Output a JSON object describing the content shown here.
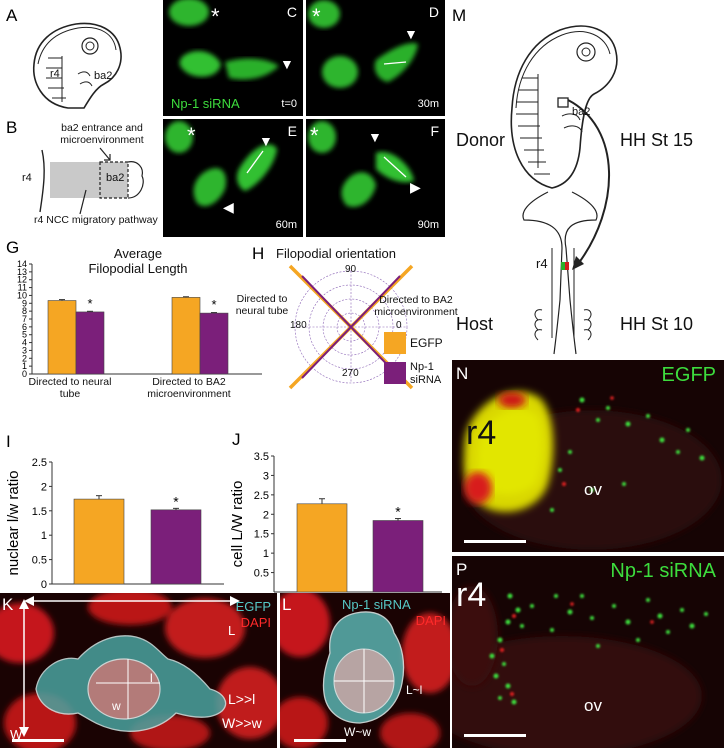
{
  "panels": {
    "A": {
      "label": "A",
      "r4": "r4",
      "ba2": "ba2"
    },
    "B": {
      "label": "B",
      "entrance": "ba2 entrance and microenvironment",
      "r4": "r4",
      "ba2": "ba2",
      "pathway": "r4 NCC migratory pathway"
    },
    "C": {
      "label": "C",
      "star": "*",
      "treatment": "Np-1 siRNA",
      "time": "t=0"
    },
    "D": {
      "label": "D",
      "star": "*",
      "time": "30m"
    },
    "E": {
      "label": "E",
      "star": "*",
      "time": "60m"
    },
    "F": {
      "label": "F",
      "star": "*",
      "time": "90m"
    },
    "G": {
      "label": "G",
      "title_line1": "Average",
      "title_line2": "Filopodial Length"
    },
    "H": {
      "label": "H",
      "title": "Filopodial orientation",
      "left_text_line1": "Directed to",
      "left_text_line2": "neural tube",
      "right_text_line1": "Directed to BA2",
      "right_text_line2": "microenvironment",
      "deg90": "90",
      "deg180": "180",
      "deg0": "0",
      "deg270": "270",
      "legend_egfp": "EGFP",
      "legend_np1_line1": "Np-1",
      "legend_np1_line2": "siRNA"
    },
    "I": {
      "label": "I"
    },
    "J": {
      "label": "J"
    },
    "K": {
      "label": "K",
      "egfp": "EGFP",
      "dapi": "DAPI",
      "L": "L",
      "W": "W",
      "l": "l",
      "w": "w",
      "rel1": "L>>l",
      "rel2": "W>>w"
    },
    "L": {
      "label": "L",
      "np1": "Np-1 siRNA",
      "dapi": "DAPI",
      "rel": "L~l",
      "relw": "W~w"
    },
    "M": {
      "label": "M",
      "donor": "Donor",
      "stage_donor": "HH St 15",
      "ba2": "ba2",
      "r4": "r4",
      "host": "Host",
      "stage_host": "HH St 10"
    },
    "N": {
      "label": "N",
      "treatment": "EGFP",
      "r4": "r4",
      "ov": "ov"
    },
    "P": {
      "label": "P",
      "treatment": "Np-1 siRNA",
      "r4": "r4",
      "ov": "ov"
    }
  },
  "colors": {
    "egfp": "#f5a623",
    "np1": "#7b1f7a"
  },
  "chart_data": [
    {
      "type": "bar",
      "id": "G",
      "title": "Average Filopodial Length",
      "categories": [
        "Directed to neural tube",
        "Directed to BA2 microenvironment"
      ],
      "series": [
        {
          "values": [
            9.35,
            9.75
          ],
          "errors": [
            0.12,
            0.08
          ]
        },
        {
          "values": [
            7.9,
            7.75
          ],
          "errors": [
            0.08,
            0.07
          ]
        }
      ],
      "significance": [
        "*",
        "*"
      ],
      "ylim": [
        0,
        14
      ],
      "yticks": [
        0,
        1,
        2,
        3,
        4,
        5,
        6,
        7,
        8,
        9,
        10,
        11,
        12,
        13,
        14
      ],
      "xlabel": "",
      "ylabel": ""
    },
    {
      "type": "bar",
      "id": "I",
      "categories": [
        "",
        ""
      ],
      "values": [
        1.74,
        1.52
      ],
      "errors": [
        0.07,
        0.03
      ],
      "significance": [
        "",
        "*"
      ],
      "ylim": [
        0,
        2.5
      ],
      "yticks": [
        "0",
        "0.5",
        "1",
        "1.5",
        "2",
        "2.5"
      ],
      "ylabel": "nuclear l/w ratio"
    },
    {
      "type": "bar",
      "id": "J",
      "categories": [
        "",
        ""
      ],
      "values": [
        2.27,
        1.84
      ],
      "errors": [
        0.13,
        0.05
      ],
      "significance": [
        "",
        "*"
      ],
      "ylim": [
        0,
        3.5
      ],
      "yticks": [
        "0.5",
        "1",
        "1.5",
        "2",
        "2.5",
        "3",
        "3.5"
      ],
      "ylabel": "cell L/W ratio"
    }
  ]
}
